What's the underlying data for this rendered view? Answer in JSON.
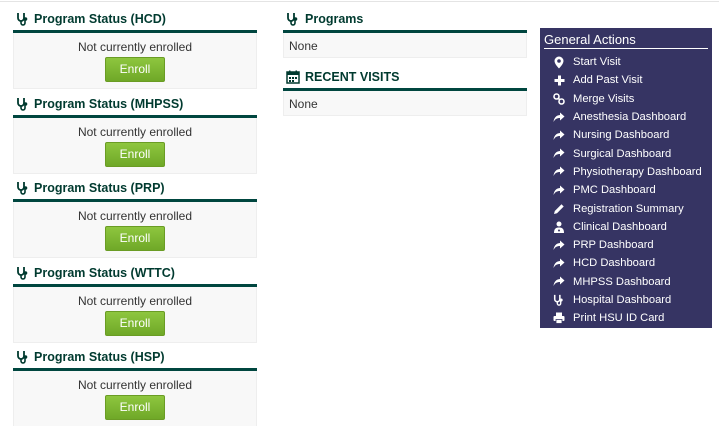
{
  "program_statuses": [
    {
      "title": "Program Status (HCD)",
      "status": "Not currently enrolled",
      "button": "Enroll"
    },
    {
      "title": "Program Status (MHPSS)",
      "status": "Not currently enrolled",
      "button": "Enroll"
    },
    {
      "title": "Program Status (PRP)",
      "status": "Not currently enrolled",
      "button": "Enroll"
    },
    {
      "title": "Program Status (WTTC)",
      "status": "Not currently enrolled",
      "button": "Enroll"
    },
    {
      "title": "Program Status (HSP)",
      "status": "Not currently enrolled",
      "button": "Enroll"
    }
  ],
  "programs": {
    "title": "Programs",
    "value": "None",
    "icon": "stethoscope-icon"
  },
  "recent_visits": {
    "title": "RECENT VISITS",
    "value": "None",
    "icon": "calendar-icon"
  },
  "general_actions": {
    "title": "General Actions",
    "items": [
      {
        "label": "Start Visit",
        "icon": "map-pin-icon"
      },
      {
        "label": "Add Past Visit",
        "icon": "plus-icon"
      },
      {
        "label": "Merge Visits",
        "icon": "link-icon"
      },
      {
        "label": "Anesthesia Dashboard",
        "icon": "share-arrow-icon"
      },
      {
        "label": "Nursing Dashboard",
        "icon": "share-arrow-icon"
      },
      {
        "label": "Surgical Dashboard",
        "icon": "share-arrow-icon"
      },
      {
        "label": "Physiotherapy Dashboard",
        "icon": "share-arrow-icon"
      },
      {
        "label": "PMC Dashboard",
        "icon": "share-arrow-icon"
      },
      {
        "label": "Registration Summary",
        "icon": "pencil-icon"
      },
      {
        "label": "Clinical Dashboard",
        "icon": "user-md-icon"
      },
      {
        "label": "PRP Dashboard",
        "icon": "share-arrow-icon"
      },
      {
        "label": "HCD Dashboard",
        "icon": "share-arrow-icon"
      },
      {
        "label": "MHPSS Dashboard",
        "icon": "share-arrow-icon"
      },
      {
        "label": "Hospital Dashboard",
        "icon": "stethoscope-icon"
      },
      {
        "label": "Print HSU ID Card",
        "icon": "print-icon"
      }
    ]
  },
  "colors": {
    "header_green": "#003a2f",
    "rule_green": "#00463f",
    "enroll_green": "#7ab531",
    "actions_bg": "#363463"
  }
}
